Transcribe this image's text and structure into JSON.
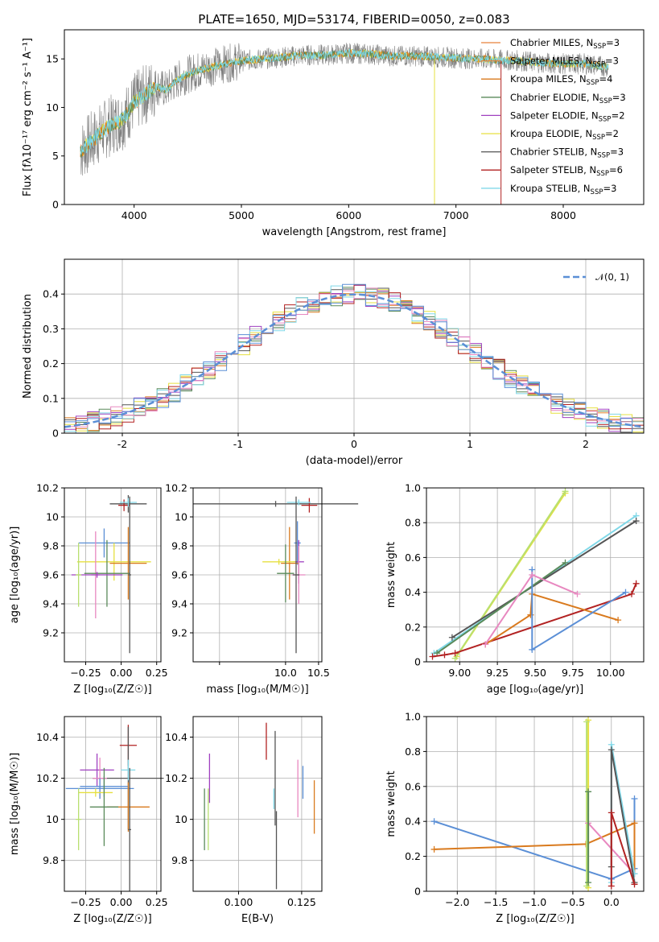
{
  "figure_title": "PLATE=1650, MJD=53174, FIBERID=0050, z=0.083",
  "colors": {
    "chabrier_miles": "#e8813a",
    "salpeter_miles": "#e8813a",
    "kroupa_miles": "#d97a1e",
    "chabrier_elodie": "#5a8a5a",
    "salpeter_elodie": "#a040c0",
    "kroupa_elodie": "#e6e040",
    "chabrier_stelib": "#555555",
    "salpeter_stelib": "#b22222",
    "kroupa_stelib": "#80d8e8",
    "gauss": "#5b8fd6",
    "data": "#808080",
    "blue": "#5b8fd6",
    "pink": "#e888c0",
    "green2": "#b8e070"
  },
  "legend": [
    {
      "label": "Chabrier MILES, N",
      "sub": "SSP",
      "n": "=3",
      "color": "#e8813a"
    },
    {
      "label": "Salpeter MILES, N",
      "sub": "SSP",
      "n": "=3",
      "color": "#e8813a"
    },
    {
      "label": "Kroupa MILES, N",
      "sub": "SSP",
      "n": "=4",
      "color": "#d97a1e"
    },
    {
      "label": "Chabrier ELODIE, N",
      "sub": "SSP",
      "n": "=3",
      "color": "#5a8a5a"
    },
    {
      "label": "Salpeter ELODIE, N",
      "sub": "SSP",
      "n": "=2",
      "color": "#a040c0"
    },
    {
      "label": "Kroupa ELODIE, N",
      "sub": "SSP",
      "n": "=2",
      "color": "#e6e040"
    },
    {
      "label": "Chabrier STELIB, N",
      "sub": "SSP",
      "n": "=3",
      "color": "#555555"
    },
    {
      "label": "Salpeter STELIB, N",
      "sub": "SSP",
      "n": "=6",
      "color": "#b22222"
    },
    {
      "label": "Kroupa STELIB, N",
      "sub": "SSP",
      "n": "=3",
      "color": "#80d8e8"
    }
  ],
  "hist_legend": "𝒩(0, 1)",
  "chart_data": [
    {
      "type": "line",
      "xlabel": "wavelength [Angstrom, rest frame]",
      "ylabel": "Flux [fλ10⁻¹⁷ erg cm⁻² s⁻¹ A⁻¹]",
      "xlim": [
        3350,
        8750
      ],
      "ylim": [
        0,
        18
      ],
      "xticks": [
        4000,
        5000,
        6000,
        7000,
        8000
      ],
      "yticks": [
        0,
        5,
        10,
        15
      ],
      "spectrum_profile": {
        "x": [
          3500,
          3600,
          3700,
          3800,
          3900,
          4000,
          4100,
          4200,
          4300,
          4400,
          4500,
          4600,
          4800,
          5000,
          5200,
          5400,
          5600,
          5800,
          6000,
          6200,
          6400,
          6600,
          6800,
          7000,
          7200,
          7400,
          7600,
          7800,
          8000,
          8200,
          8400
        ],
        "y": [
          5.5,
          6.5,
          7.5,
          8.3,
          8.8,
          10.5,
          11.3,
          12.2,
          11.8,
          12.8,
          13.4,
          13.8,
          14.4,
          14.8,
          15.0,
          15.2,
          15.4,
          15.4,
          15.6,
          15.5,
          15.3,
          15.3,
          15.2,
          15.1,
          15.0,
          14.9,
          14.8,
          14.6,
          14.5,
          14.5,
          14.2
        ]
      }
    },
    {
      "type": "bar",
      "xlabel": "(data-model)/error",
      "ylabel": "Normed distribution",
      "xlim": [
        -2.5,
        2.5
      ],
      "ylim": [
        0,
        0.5
      ],
      "xticks": [
        -2,
        -1,
        0,
        1,
        2
      ],
      "yticks": [
        0.0,
        0.1,
        0.2,
        0.3,
        0.4
      ],
      "bin_width": 0.1,
      "gauss_curve": "N(0,1)"
    },
    {
      "type": "scatter",
      "panel": "age_vs_Z",
      "xlabel": "Z [log₁₀(Z/Z☉)]",
      "ylabel": "age  [log₁₀(age/yr)]",
      "xlim": [
        -0.4,
        0.28
      ],
      "ylim": [
        9.0,
        10.2
      ],
      "xticks": [
        -0.25,
        0.0,
        0.25
      ],
      "xticklabels": [
        "−0.25",
        "0.00",
        "0.25"
      ],
      "yticks": [
        9.2,
        9.4,
        9.6,
        9.8,
        10.0,
        10.2
      ],
      "points": [
        {
          "x": 0.05,
          "y": 10.09,
          "xerr": 0.13,
          "yerr": 0.06,
          "c": "chabrier_stelib"
        },
        {
          "x": 0.02,
          "y": 10.08,
          "xerr": 0.04,
          "yerr": 0.04,
          "c": "salpeter_stelib"
        },
        {
          "x": 0.05,
          "y": 10.1,
          "xerr": 0.06,
          "yerr": 0.03,
          "c": "kroupa_stelib"
        },
        {
          "x": -0.12,
          "y": 9.82,
          "xerr": 0.18,
          "yerr": 0.1,
          "c": "blue"
        },
        {
          "x": -0.05,
          "y": 9.69,
          "xerr": 0.26,
          "yerr": 0.13,
          "c": "kroupa_elodie"
        },
        {
          "x": 0.05,
          "y": 9.68,
          "xerr": 0.13,
          "yerr": 0.25,
          "c": "kroupa_miles"
        },
        {
          "x": -0.18,
          "y": 9.6,
          "xerr": 0.03,
          "yerr": 0.3,
          "c": "pink"
        },
        {
          "x": -0.1,
          "y": 9.61,
          "xerr": 0.16,
          "yerr": 0.23,
          "c": "chabrier_elodie"
        },
        {
          "x": -0.17,
          "y": 9.6,
          "xerr": 0.18,
          "yerr": 0.02,
          "c": "salpeter_elodie"
        },
        {
          "x": 0.06,
          "y": 9.6,
          "xerr": 0.01,
          "yerr": 0.54,
          "c": "chabrier_stelib"
        },
        {
          "x": -0.3,
          "y": 9.6,
          "xerr": 0.02,
          "yerr": 0.22,
          "c": "green2"
        }
      ]
    },
    {
      "type": "scatter",
      "panel": "age_vs_mass",
      "xlabel": "mass [log₁₀(M/M☉)]",
      "xlim": [
        8.6,
        10.55
      ],
      "ylim": [
        9.0,
        10.2
      ],
      "xticks": [
        9.0,
        10.0,
        10.5
      ],
      "xticklabels": [
        "",
        "10.0",
        "10.5"
      ],
      "yticks": [
        9.2,
        9.4,
        9.6,
        9.8,
        10.0,
        10.2
      ],
      "points": [
        {
          "x": 9.85,
          "y": 10.09,
          "xerr": 1.25,
          "yerr": 0.02,
          "c": "chabrier_stelib"
        },
        {
          "x": 10.36,
          "y": 10.08,
          "xerr": 0.12,
          "yerr": 0.05,
          "c": "salpeter_stelib"
        },
        {
          "x": 10.2,
          "y": 10.1,
          "xerr": 0.18,
          "yerr": 0.02,
          "c": "kroupa_stelib"
        },
        {
          "x": 10.18,
          "y": 9.82,
          "xerr": 0.05,
          "yerr": 0.15,
          "c": "blue"
        },
        {
          "x": 10.2,
          "y": 9.69,
          "xerr": 0.08,
          "yerr": 0.15,
          "c": "salpeter_elodie"
        },
        {
          "x": 10.06,
          "y": 9.68,
          "xerr": 0.13,
          "yerr": 0.25,
          "c": "kroupa_miles"
        },
        {
          "x": 9.9,
          "y": 9.69,
          "xerr": 0.25,
          "yerr": 0.02,
          "c": "kroupa_elodie"
        },
        {
          "x": 10.0,
          "y": 9.61,
          "xerr": 0.13,
          "yerr": 0.2,
          "c": "chabrier_elodie"
        },
        {
          "x": 10.2,
          "y": 9.6,
          "xerr": 0.1,
          "yerr": 0.2,
          "c": "pink"
        },
        {
          "x": 10.16,
          "y": 9.6,
          "xerr": 0.05,
          "yerr": 0.54,
          "c": "chabrier_stelib"
        }
      ]
    },
    {
      "type": "line",
      "panel": "massweight_vs_age",
      "xlabel": "age  [log₁₀(age/yr)]",
      "ylabel": "mass weight",
      "xlim": [
        8.78,
        10.22
      ],
      "ylim": [
        0,
        1.0
      ],
      "xticks": [
        9.0,
        9.25,
        9.5,
        9.75,
        10.0
      ],
      "xticklabels": [
        "9.00",
        "9.25",
        "9.50",
        "9.75",
        "10.00"
      ],
      "yticks": [
        0.0,
        0.2,
        0.4,
        0.6,
        0.8,
        1.0
      ],
      "series": [
        {
          "c": "kroupa_elodie",
          "x": [
            8.98,
            9.7
          ],
          "y": [
            0.03,
            0.97
          ]
        },
        {
          "c": "green2",
          "x": [
            8.97,
            9.7
          ],
          "y": [
            0.02,
            0.98
          ]
        },
        {
          "c": "kroupa_stelib",
          "x": [
            8.83,
            10.17
          ],
          "y": [
            0.05,
            0.84
          ]
        },
        {
          "c": "chabrier_stelib",
          "x": [
            8.95,
            10.17
          ],
          "y": [
            0.14,
            0.81
          ]
        },
        {
          "c": "chabrier_elodie",
          "x": [
            8.85,
            9.7
          ],
          "y": [
            0.05,
            0.57
          ]
        },
        {
          "c": "salpeter_stelib",
          "x": [
            8.82,
            8.9,
            8.97,
            10.14,
            10.17
          ],
          "y": [
            0.03,
            0.04,
            0.05,
            0.39,
            0.45
          ]
        },
        {
          "c": "kroupa_miles",
          "x": [
            9.17,
            9.47,
            9.48,
            10.05
          ],
          "y": [
            0.1,
            0.27,
            0.39,
            0.24
          ]
        },
        {
          "c": "blue",
          "x": [
            9.48,
            9.48,
            10.1
          ],
          "y": [
            0.53,
            0.07,
            0.4
          ]
        },
        {
          "c": "pink",
          "x": [
            9.17,
            9.48,
            9.78
          ],
          "y": [
            0.1,
            0.5,
            0.39
          ]
        }
      ]
    },
    {
      "type": "scatter",
      "panel": "mass_vs_Z",
      "xlabel": "Z [log₁₀(Z/Z☉)]",
      "ylabel": "mass [log₁₀(M/M☉)]",
      "xlim": [
        -0.4,
        0.28
      ],
      "ylim": [
        9.65,
        10.5
      ],
      "xticks": [
        -0.25,
        0.0,
        0.25
      ],
      "xticklabels": [
        "−0.25",
        "0.00",
        "0.25"
      ],
      "yticks": [
        9.8,
        10.0,
        10.2,
        10.4
      ],
      "points": [
        {
          "x": 0.05,
          "y": 10.36,
          "xerr": 0.06,
          "yerr": 0.1,
          "c": "salpeter_stelib"
        },
        {
          "x": 0.05,
          "y": 10.2,
          "xerr": 0.25,
          "yerr": 0.25,
          "c": "chabrier_stelib"
        },
        {
          "x": 0.05,
          "y": 10.24,
          "xerr": 0.05,
          "yerr": 0.05,
          "c": "kroupa_stelib"
        },
        {
          "x": -0.17,
          "y": 10.24,
          "xerr": 0.12,
          "yerr": 0.08,
          "c": "salpeter_elodie"
        },
        {
          "x": -0.15,
          "y": 10.2,
          "xerr": 0.05,
          "yerr": 0.1,
          "c": "pink"
        },
        {
          "x": -0.12,
          "y": 10.16,
          "xerr": 0.17,
          "yerr": 0.05,
          "c": "blue"
        },
        {
          "x": -0.15,
          "y": 10.15,
          "xerr": 0.24,
          "yerr": 0.05,
          "c": "blue"
        },
        {
          "x": -0.18,
          "y": 10.13,
          "xerr": 0.12,
          "yerr": 0.02,
          "c": "kroupa_elodie"
        },
        {
          "x": 0.05,
          "y": 10.06,
          "xerr": 0.15,
          "yerr": 0.12,
          "c": "kroupa_miles"
        },
        {
          "x": -0.12,
          "y": 10.06,
          "xerr": 0.1,
          "yerr": 0.19,
          "c": "chabrier_elodie"
        },
        {
          "x": -0.3,
          "y": 10.0,
          "xerr": 0.02,
          "yerr": 0.15,
          "c": "green2"
        },
        {
          "x": 0.06,
          "y": 9.95,
          "xerr": 0.01,
          "yerr": 0.3,
          "c": "chabrier_stelib"
        }
      ]
    },
    {
      "type": "scatter",
      "panel": "mass_vs_ebv",
      "xlabel": "E(B-V)",
      "xlim": [
        0.082,
        0.133
      ],
      "ylim": [
        9.65,
        10.5
      ],
      "xticks": [
        0.1,
        0.125
      ],
      "xticklabels": [
        "0.100",
        "0.125"
      ],
      "yticks": [
        9.8,
        10.0,
        10.2,
        10.4
      ],
      "points": [
        {
          "x": 0.0865,
          "y": 10.0,
          "yerr": 0.15,
          "c": "chabrier_elodie"
        },
        {
          "x": 0.0885,
          "y": 10.2,
          "yerr": 0.12,
          "c": "salpeter_elodie"
        },
        {
          "x": 0.088,
          "y": 10.0,
          "yerr": 0.15,
          "c": "green2"
        },
        {
          "x": 0.111,
          "y": 10.38,
          "yerr": 0.09,
          "c": "salpeter_stelib"
        },
        {
          "x": 0.1145,
          "y": 10.2,
          "yerr": 0.23,
          "c": "chabrier_stelib"
        },
        {
          "x": 0.114,
          "y": 10.1,
          "yerr": 0.05,
          "c": "kroupa_stelib"
        },
        {
          "x": 0.115,
          "y": 9.85,
          "yerr": 0.19,
          "c": "chabrier_stelib"
        },
        {
          "x": 0.1235,
          "y": 10.15,
          "yerr": 0.14,
          "c": "pink"
        },
        {
          "x": 0.1255,
          "y": 10.18,
          "yerr": 0.08,
          "c": "blue"
        },
        {
          "x": 0.13,
          "y": 10.06,
          "yerr": 0.13,
          "c": "kroupa_miles"
        }
      ]
    },
    {
      "type": "line",
      "panel": "massweight_vs_Z",
      "xlabel": "Z [log₁₀(Z/Z☉)]",
      "ylabel": "mass weight",
      "xlim": [
        -2.4,
        0.42
      ],
      "ylim": [
        0,
        1.0
      ],
      "xticks": [
        -2.0,
        -1.5,
        -1.0,
        -0.5,
        0.0
      ],
      "xticklabels": [
        "−2.0",
        "−1.5",
        "−1.0",
        "−0.5",
        "0.0"
      ],
      "yticks": [
        0.0,
        0.2,
        0.4,
        0.6,
        0.8,
        1.0
      ],
      "series": [
        {
          "c": "blue",
          "x": [
            -2.3,
            0.0,
            0.3,
            0.3
          ],
          "y": [
            0.4,
            0.07,
            0.13,
            0.53
          ]
        },
        {
          "c": "kroupa_miles",
          "x": [
            -2.3,
            -0.33,
            0.3,
            0.3
          ],
          "y": [
            0.24,
            0.27,
            0.39,
            0.1
          ]
        },
        {
          "c": "kroupa_elodie",
          "x": [
            -0.3,
            -0.3
          ],
          "y": [
            0.02,
            0.98
          ]
        },
        {
          "c": "green2",
          "x": [
            -0.32,
            -0.32
          ],
          "y": [
            0.03,
            0.97
          ]
        },
        {
          "c": "pink",
          "x": [
            -0.3,
            0.3
          ],
          "y": [
            0.39,
            0.1
          ]
        },
        {
          "c": "chabrier_elodie",
          "x": [
            -0.3,
            -0.3
          ],
          "y": [
            0.05,
            0.57
          ]
        },
        {
          "c": "kroupa_stelib",
          "x": [
            0.0,
            0.0,
            0.3
          ],
          "y": [
            0.05,
            0.84,
            0.1
          ]
        },
        {
          "c": "chabrier_stelib",
          "x": [
            0.0,
            0.0,
            0.3
          ],
          "y": [
            0.14,
            0.81,
            0.05
          ]
        },
        {
          "c": "salpeter_stelib",
          "x": [
            0.0,
            0.0,
            0.3
          ],
          "y": [
            0.03,
            0.45,
            0.04
          ]
        }
      ]
    }
  ]
}
